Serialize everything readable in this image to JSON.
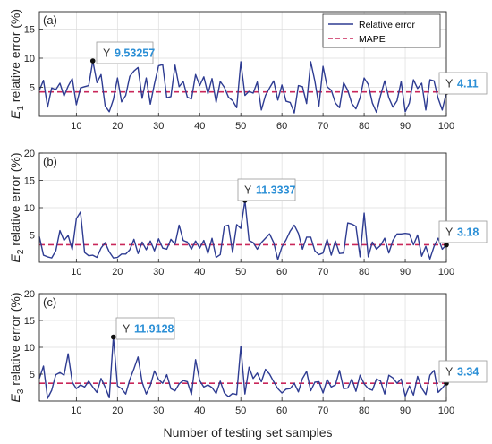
{
  "colors": {
    "series": "#2e3c92",
    "mape": "#c9275a",
    "tip_value": "#2b8fd6",
    "axis": "#262626"
  },
  "xlabel": "Number of testing set samples",
  "legend": {
    "series": "Relative error",
    "mape": "MAPE",
    "location": "top-right"
  },
  "chart_data": [
    {
      "type": "line",
      "panel": "(a)",
      "ylabel_main": "E",
      "ylabel_sub": "1",
      "ylabel_rest": " relative error (%)",
      "xlim": [
        1,
        100
      ],
      "ylim": [
        0,
        18
      ],
      "yticks": [
        5,
        10,
        15
      ],
      "xticks": [
        10,
        20,
        30,
        40,
        50,
        60,
        70,
        80,
        90,
        100
      ],
      "grid": true,
      "legend": true,
      "mape": 4.2,
      "x_start": 1,
      "series": [
        {
          "name": "Relative error",
          "values": [
            4.5,
            6.2,
            1.6,
            4.9,
            4.6,
            5.7,
            3.5,
            5.2,
            6.5,
            2.0,
            4.9,
            5.1,
            5.3,
            9.53257,
            5.8,
            7.2,
            1.8,
            0.8,
            2.9,
            6.6,
            2.5,
            3.6,
            6.9,
            7.8,
            8.4,
            3.1,
            6.6,
            2.1,
            5.6,
            8.7,
            8.9,
            3.2,
            3.4,
            8.8,
            5.1,
            6.0,
            3.3,
            3.0,
            7.2,
            5.3,
            6.8,
            3.9,
            6.5,
            2.4,
            6.0,
            5.0,
            3.3,
            2.7,
            1.5,
            9.4,
            3.6,
            4.3,
            4.0,
            5.9,
            1.1,
            3.6,
            4.9,
            6.1,
            2.8,
            5.4,
            2.6,
            2.4,
            0.6,
            5.3,
            5.1,
            2.2,
            9.4,
            6.1,
            1.8,
            8.6,
            5.1,
            4.5,
            2.3,
            1.5,
            5.8,
            4.5,
            2.2,
            1.3,
            3.2,
            6.6,
            5.5,
            2.3,
            0.7,
            3.6,
            6.1,
            3.2,
            1.6,
            2.7,
            6.0,
            0.8,
            2.3,
            6.3,
            4.8,
            5.7,
            1.1,
            6.3,
            6.1,
            3.1,
            1.1,
            4.11
          ]
        }
      ],
      "tooltip": {
        "x": 14,
        "prefix": "Y",
        "value": "9.53257"
      },
      "tooltip_end": {
        "x": 100,
        "prefix": "Y",
        "value": "4.11"
      }
    },
    {
      "type": "line",
      "panel": "(b)",
      "ylabel_main": "E",
      "ylabel_sub": "2",
      "ylabel_rest": " relative error (%)",
      "xlim": [
        1,
        100
      ],
      "ylim": [
        0,
        20
      ],
      "yticks": [
        5,
        10,
        15,
        20
      ],
      "xticks": [
        10,
        20,
        30,
        40,
        50,
        60,
        70,
        80,
        90,
        100
      ],
      "grid": true,
      "legend": false,
      "mape": 3.2,
      "x_start": 1,
      "series": [
        {
          "name": "Relative error",
          "values": [
            4.7,
            1.3,
            1.0,
            0.8,
            2.1,
            5.8,
            4.0,
            4.9,
            2.3,
            8.0,
            9.2,
            1.8,
            1.2,
            1.3,
            0.9,
            2.6,
            3.6,
            1.9,
            0.8,
            0.9,
            1.5,
            1.5,
            2.3,
            4.2,
            1.6,
            3.7,
            2.3,
            3.9,
            2.1,
            4.3,
            2.6,
            2.4,
            4.2,
            3.3,
            6.8,
            4.0,
            3.7,
            2.4,
            3.9,
            2.6,
            4.0,
            1.6,
            4.4,
            0.9,
            1.4,
            6.6,
            6.8,
            1.8,
            6.9,
            6.2,
            11.3337,
            4.0,
            3.6,
            2.4,
            3.6,
            4.4,
            5.2,
            3.6,
            0.5,
            2.8,
            4.1,
            5.7,
            6.8,
            5.3,
            2.4,
            4.6,
            4.6,
            2.1,
            1.4,
            1.7,
            4.2,
            1.3,
            3.9,
            1.6,
            1.7,
            7.2,
            7.0,
            6.6,
            1.0,
            9.0,
            1.0,
            3.7,
            2.4,
            3.1,
            4.4,
            1.7,
            4.0,
            5.2,
            5.2,
            5.3,
            5.2,
            3.2,
            5.0,
            1.1,
            2.9,
            0.6,
            2.9,
            4.4,
            2.4,
            3.18
          ]
        }
      ],
      "tooltip": {
        "x": 51,
        "prefix": "Y",
        "value": "11.3337"
      },
      "tooltip_end": {
        "x": 100,
        "prefix": "Y",
        "value": "3.18"
      }
    },
    {
      "type": "line",
      "panel": "(c)",
      "ylabel_main": "E",
      "ylabel_sub": "3",
      "ylabel_rest": " relative error (%)",
      "xlim": [
        1,
        100
      ],
      "ylim": [
        0,
        20
      ],
      "yticks": [
        5,
        10,
        15,
        20
      ],
      "xticks": [
        10,
        20,
        30,
        40,
        50,
        60,
        70,
        80,
        90,
        100
      ],
      "grid": true,
      "legend": false,
      "mape": 3.3,
      "x_start": 1,
      "series": [
        {
          "name": "Relative error",
          "values": [
            4.2,
            6.5,
            0.5,
            2.0,
            4.9,
            5.3,
            4.8,
            8.8,
            3.5,
            2.3,
            3.0,
            2.6,
            3.7,
            2.6,
            1.6,
            4.2,
            2.6,
            0.6,
            11.9128,
            2.8,
            2.3,
            1.3,
            4.0,
            6.0,
            8.2,
            3.5,
            1.3,
            2.9,
            5.6,
            4.0,
            3.3,
            4.9,
            2.3,
            1.9,
            3.2,
            3.8,
            3.6,
            1.2,
            7.7,
            3.8,
            2.6,
            3.0,
            2.5,
            1.4,
            3.7,
            1.5,
            0.8,
            1.4,
            1.2,
            10.2,
            1.3,
            6.3,
            4.2,
            5.2,
            3.6,
            5.9,
            5.0,
            3.6,
            2.3,
            1.5,
            2.2,
            2.3,
            3.3,
            1.7,
            4.2,
            5.5,
            1.9,
            3.5,
            3.6,
            1.5,
            4.0,
            2.6,
            3.0,
            5.7,
            2.3,
            2.4,
            4.1,
            1.8,
            4.8,
            3.2,
            2.3,
            2.0,
            4.1,
            3.7,
            1.3,
            4.8,
            4.3,
            3.3,
            4.1,
            0.9,
            2.8,
            1.1,
            4.6,
            2.4,
            1.2,
            4.8,
            5.7,
            1.6,
            2.4,
            3.34
          ]
        }
      ],
      "tooltip": {
        "x": 19,
        "prefix": "Y",
        "value": "11.9128"
      },
      "tooltip_end": {
        "x": 100,
        "prefix": "Y",
        "value": "3.34"
      }
    }
  ]
}
